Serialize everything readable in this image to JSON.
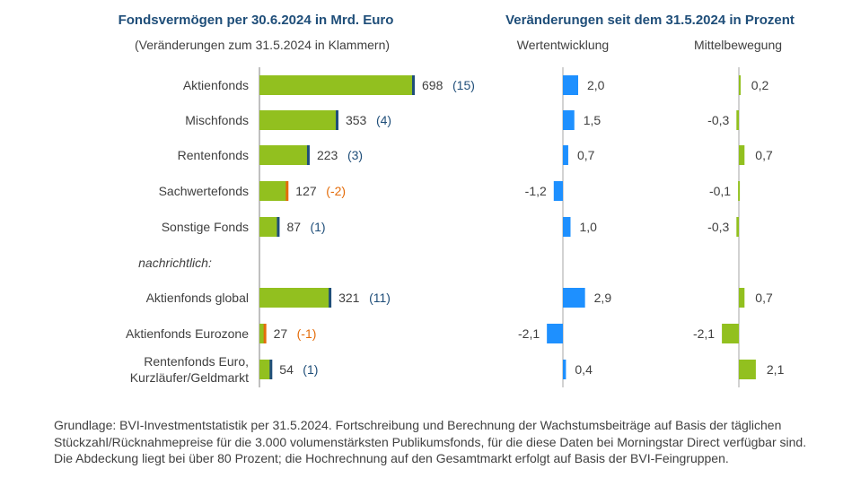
{
  "titles": {
    "left": "Fondsvermögen per 30.6.2024 in Mrd. Euro",
    "left_sub": "(Veränderungen zum 31.5.2024 in Klammern)",
    "right": "Veränderungen seit dem 31.5.2024 in Prozent",
    "col1": "Wertentwicklung",
    "col2": "Mittelbewegung"
  },
  "note_label": "nachrichtlich:",
  "colors": {
    "assets_bar": "#92c01f",
    "bar_edge_positive": "#1f4e79",
    "bar_edge_negative": "#e46c0a",
    "change_positive": "#1f4e79",
    "change_negative": "#e46c0a",
    "performance_bar": "#1e90ff",
    "flows_bar": "#92c01f"
  },
  "chart_data": [
    {
      "type": "bar",
      "orientation": "horizontal",
      "title": "Fondsvermögen per 30.6.2024 in Mrd. Euro",
      "subtitle": "(Veränderungen zum 31.5.2024 in Klammern)",
      "categories": [
        "Aktienfonds",
        "Mischfonds",
        "Rentenfonds",
        "Sachwertefonds",
        "Sonstige Fonds",
        "Aktienfonds global",
        "Aktienfonds Eurozone",
        "Rentenfonds Euro, Kurzläufer/Geldmarkt"
      ],
      "values": [
        698,
        353,
        223,
        127,
        87,
        321,
        27,
        54
      ],
      "labels": [
        "698",
        "353",
        "223",
        "127",
        "87",
        "321",
        "27",
        "54"
      ],
      "changes": [
        "(15)",
        "(4)",
        "(3)",
        "(-2)",
        "(1)",
        "(11)",
        "(-1)",
        "(1)"
      ],
      "change_values": [
        15,
        4,
        3,
        -2,
        1,
        11,
        -1,
        1
      ]
    },
    {
      "type": "bar",
      "orientation": "horizontal",
      "title": "Wertentwicklung",
      "categories": [
        "Aktienfonds",
        "Mischfonds",
        "Rentenfonds",
        "Sachwertefonds",
        "Sonstige Fonds",
        "Aktienfonds global",
        "Aktienfonds Eurozone",
        "Rentenfonds Euro, Kurzläufer/Geldmarkt"
      ],
      "values": [
        2.0,
        1.5,
        0.7,
        -1.2,
        1.0,
        2.9,
        -2.1,
        0.4
      ],
      "labels": [
        "2,0",
        "1,5",
        "0,7",
        "-1,2",
        "1,0",
        "2,9",
        "-2,1",
        "0,4"
      ]
    },
    {
      "type": "bar",
      "orientation": "horizontal",
      "title": "Mittelbewegung",
      "categories": [
        "Aktienfonds",
        "Mischfonds",
        "Rentenfonds",
        "Sachwertefonds",
        "Sonstige Fonds",
        "Aktienfonds global",
        "Aktienfonds Eurozone",
        "Rentenfonds Euro, Kurzläufer/Geldmarkt"
      ],
      "values": [
        0.2,
        -0.3,
        0.7,
        -0.1,
        -0.3,
        0.7,
        -2.1,
        2.1
      ],
      "labels": [
        "0,2",
        "-0,3",
        "0,7",
        "-0,1",
        "-0,3",
        "0,7",
        "-2,1",
        "2,1"
      ]
    }
  ],
  "footnote": "Grundlage: BVI-Investmentstatistik per 31.5.2024. Fortschreibung und Berechnung der Wachstumsbeiträge auf Basis der täglichen Stückzahl/Rücknahmepreise für die 3.000 volumenstärksten Publikumsfonds, für die diese Daten bei Morningstar Direct verfügbar sind. Die Abdeckung liegt bei über 80 Prozent; die Hochrechnung auf den Gesamtmarkt erfolgt auf Basis der BVI-Feingruppen."
}
